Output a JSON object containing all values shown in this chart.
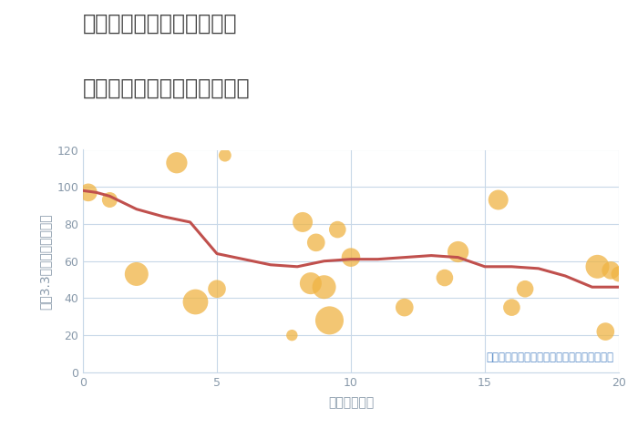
{
  "title_line1": "岐阜県高山市国府町山本の",
  "title_line2": "駅距離別中古マンション価格",
  "xlabel": "駅距離（分）",
  "ylabel_chars": [
    "坪",
    "（",
    "3",
    ".",
    "3",
    "㎡",
    "）",
    "単",
    "価",
    "（",
    "万",
    "円",
    "）"
  ],
  "ylabel_text": "坪（3.3㎡）単価（万円）",
  "annotation": "円の大きさは、取引のあった物件面積を示す",
  "scatter_x": [
    0.2,
    1.0,
    2.0,
    3.5,
    4.2,
    5.0,
    5.3,
    7.8,
    8.2,
    8.5,
    8.7,
    9.0,
    9.2,
    9.5,
    10.0,
    12.0,
    13.5,
    14.0,
    15.5,
    16.0,
    16.5,
    19.2,
    19.5,
    19.7,
    20.0
  ],
  "scatter_y": [
    97,
    93,
    53,
    113,
    38,
    45,
    117,
    20,
    81,
    48,
    70,
    46,
    28,
    77,
    62,
    35,
    51,
    65,
    93,
    35,
    45,
    57,
    22,
    55,
    53
  ],
  "scatter_size": [
    200,
    150,
    350,
    280,
    400,
    200,
    100,
    80,
    250,
    300,
    200,
    350,
    500,
    180,
    220,
    200,
    180,
    280,
    250,
    180,
    180,
    350,
    200,
    200,
    150
  ],
  "line_x": [
    0,
    0.5,
    1,
    2,
    3,
    4,
    5,
    6,
    7,
    8,
    9,
    10,
    11,
    12,
    13,
    14,
    15,
    16,
    17,
    18,
    19,
    20
  ],
  "line_y": [
    98,
    97,
    95,
    88,
    84,
    81,
    64,
    61,
    58,
    57,
    60,
    61,
    61,
    62,
    63,
    62,
    57,
    57,
    56,
    52,
    46,
    46
  ],
  "scatter_color": "#f0b444",
  "scatter_alpha": 0.75,
  "line_color": "#c0504d",
  "line_width": 2.2,
  "xlim": [
    0,
    20
  ],
  "ylim": [
    0,
    120
  ],
  "xticks": [
    0,
    5,
    10,
    15,
    20
  ],
  "yticks": [
    0,
    20,
    40,
    60,
    80,
    100,
    120
  ],
  "grid_color": "#c8d8e8",
  "bg_color": "#ffffff",
  "title_color": "#444444",
  "axis_label_color": "#8899aa",
  "tick_color": "#8899aa",
  "annotation_color": "#5b8dc8",
  "title_fontsize": 17,
  "label_fontsize": 10,
  "tick_fontsize": 9,
  "annotation_fontsize": 8.5
}
